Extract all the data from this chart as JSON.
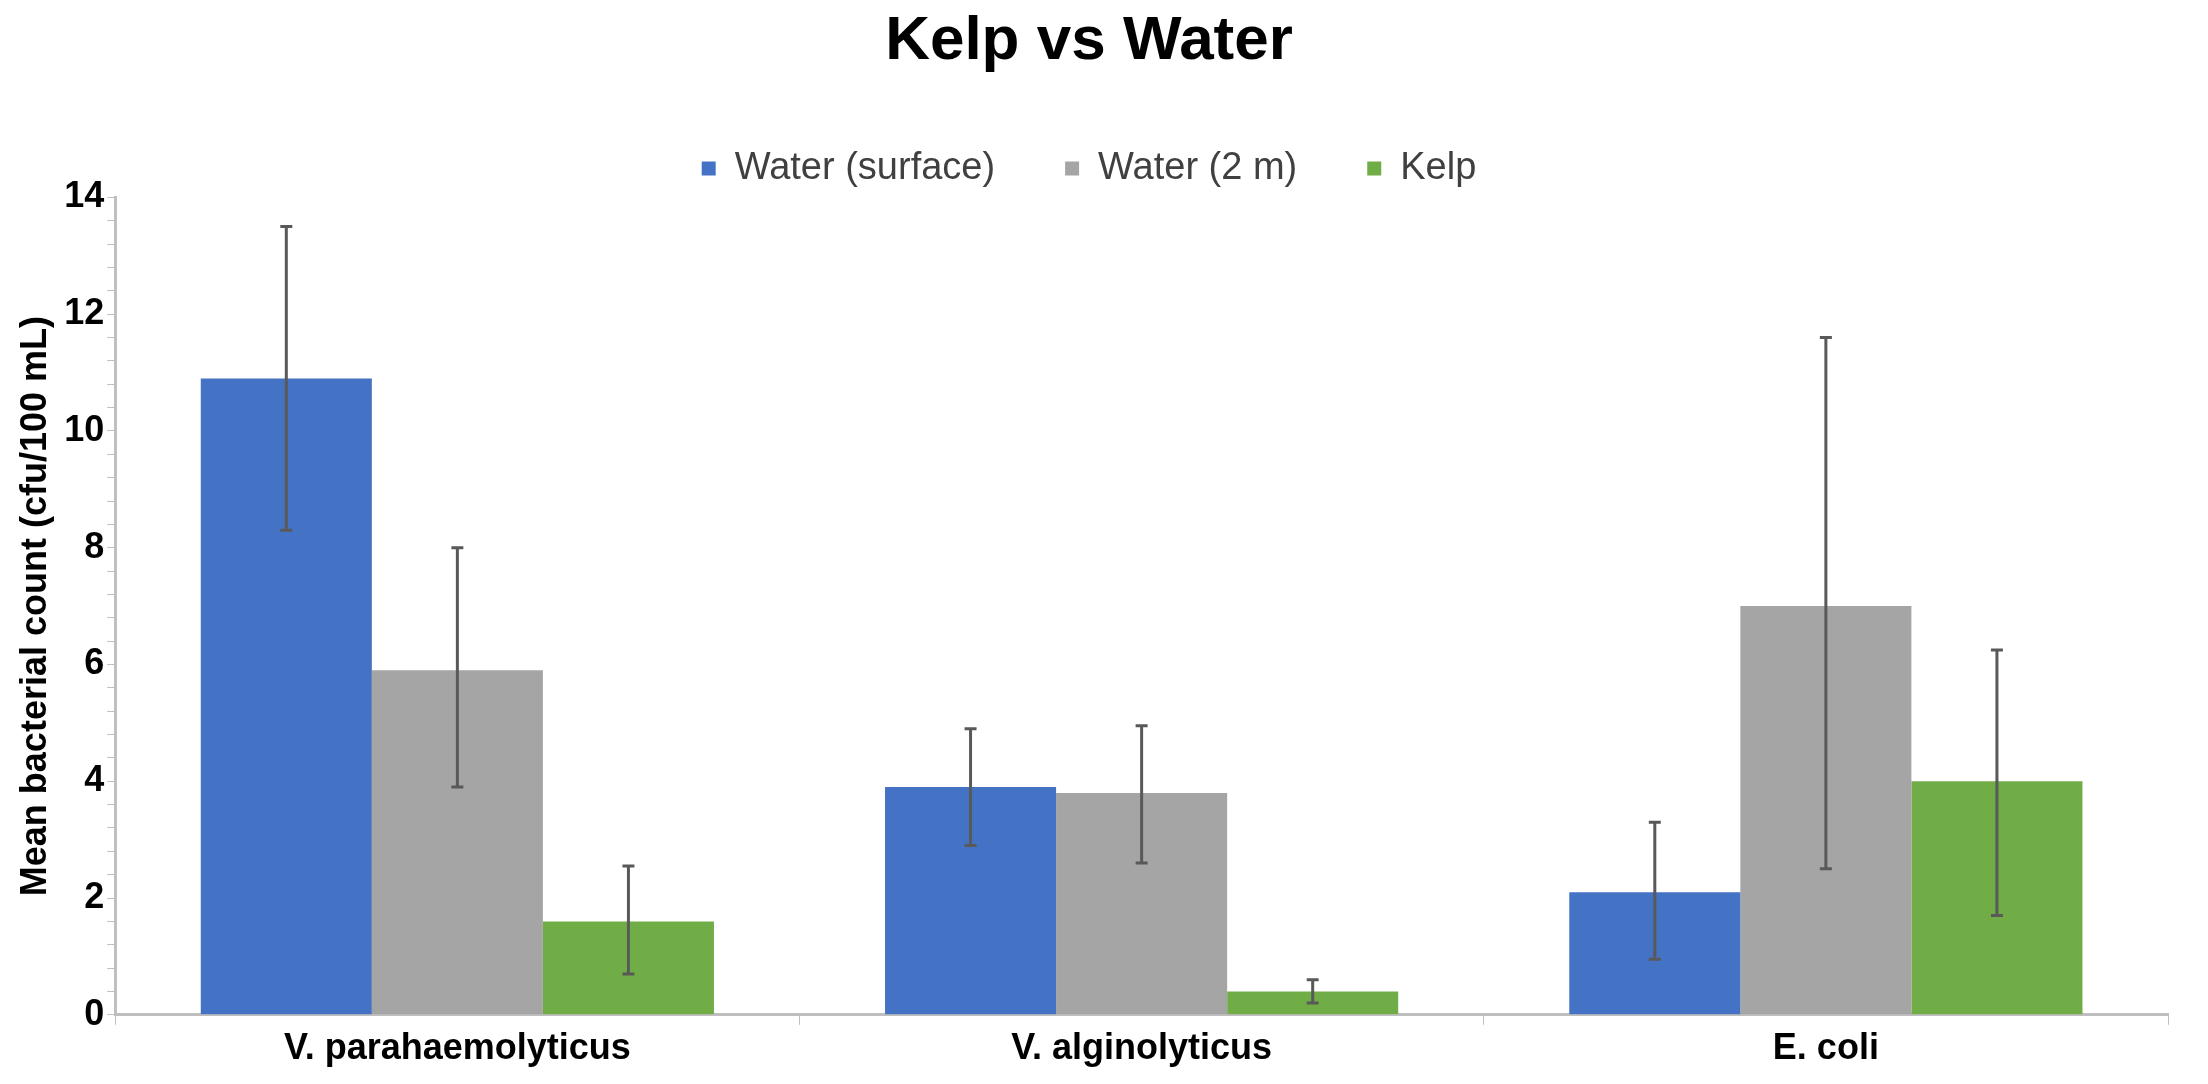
{
  "chart_data": {
    "type": "bar",
    "title": "Kelp vs Water",
    "ylabel": "Mean bacterial count (cfu/100 mL)",
    "categories": [
      "V. parahaemolyticus",
      "V. alginolyticus",
      "E. coli"
    ],
    "series": [
      {
        "name": "Water (surface)",
        "color": "#4472c4",
        "values": [
          10.9,
          3.9,
          2.1
        ],
        "errors": [
          [
            8.3,
            13.5
          ],
          [
            2.9,
            4.9
          ],
          [
            0.95,
            3.3
          ]
        ]
      },
      {
        "name": "Water (2 m)",
        "color": "#a5a5a5",
        "values": [
          5.9,
          3.8,
          7.0
        ],
        "errors": [
          [
            3.9,
            8.0
          ],
          [
            2.6,
            4.95
          ],
          [
            2.5,
            11.6
          ]
        ]
      },
      {
        "name": "Kelp",
        "color": "#70ad47",
        "values": [
          1.6,
          0.4,
          4.0
        ],
        "errors": [
          [
            0.7,
            2.55
          ],
          [
            0.2,
            0.6
          ],
          [
            1.7,
            6.25
          ]
        ]
      }
    ],
    "ylim": [
      0,
      14
    ],
    "yticks": [
      0,
      {
        "value": 0.4,
        "label": null
      },
      {
        "value": 0.8,
        "label": null
      },
      {
        "value": 1.2,
        "label": null
      },
      {
        "value": 1.6,
        "label": null
      },
      2,
      {
        "value": 2.4,
        "label": null
      },
      {
        "value": 2.8,
        "label": null
      },
      {
        "value": 3.2,
        "label": null
      },
      {
        "value": 3.6,
        "label": null
      },
      4,
      {
        "value": 4.4,
        "label": null
      },
      {
        "value": 4.8,
        "label": null
      },
      {
        "value": 5.2,
        "label": null
      },
      {
        "value": 5.6,
        "label": null
      },
      6,
      {
        "value": 6.4,
        "label": null
      },
      {
        "value": 6.8,
        "label": null
      },
      {
        "value": 7.2,
        "label": null
      },
      {
        "value": 7.6,
        "label": null
      },
      8,
      {
        "value": 8.4,
        "label": null
      },
      {
        "value": 8.8,
        "label": null
      },
      {
        "value": 9.2,
        "label": null
      },
      {
        "value": 9.6,
        "label": null
      },
      10,
      {
        "value": 10.4,
        "label": null
      },
      {
        "value": 10.8,
        "label": null
      },
      {
        "value": 11.2,
        "label": null
      },
      {
        "value": 11.6,
        "label": null
      },
      12,
      {
        "value": 12.4,
        "label": null
      },
      {
        "value": 12.8,
        "label": null
      },
      {
        "value": 13.2,
        "label": null
      },
      {
        "value": 13.6,
        "label": null
      },
      14
    ],
    "grid": false,
    "legend": "top"
  }
}
